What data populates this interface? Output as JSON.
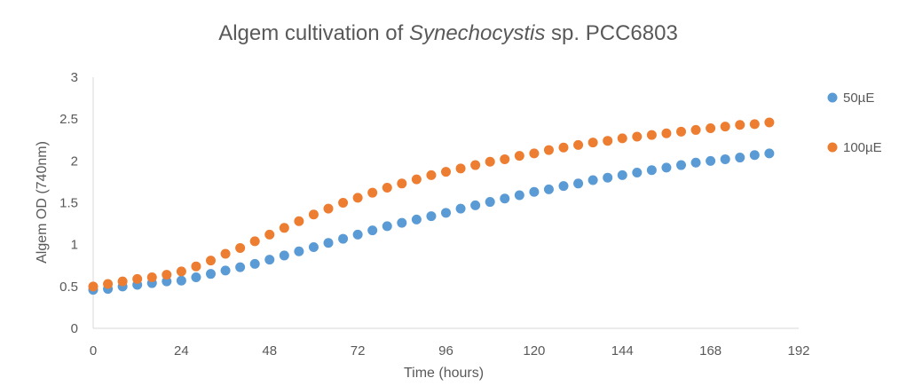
{
  "chart_data": {
    "type": "scatter",
    "title": {
      "prefix": "Algem cultivation of ",
      "italic": "Synechocystis",
      "suffix": " sp. PCC6803"
    },
    "xlabel": "Time (hours)",
    "ylabel": "Algem OD (740nm)",
    "xlim": [
      0,
      192
    ],
    "ylim": [
      0,
      3
    ],
    "xticks": [
      0,
      24,
      48,
      72,
      96,
      120,
      144,
      168,
      192
    ],
    "yticks": [
      0,
      0.5,
      1,
      1.5,
      2,
      2.5,
      3
    ],
    "grid": false,
    "legend_position": "right",
    "series": [
      {
        "name": "50µE",
        "color": "#5B9BD5",
        "x": [
          0,
          4,
          8,
          12,
          16,
          20,
          24,
          28,
          32,
          36,
          40,
          44,
          48,
          52,
          56,
          60,
          64,
          68,
          72,
          76,
          80,
          84,
          88,
          92,
          96,
          100,
          104,
          108,
          112,
          116,
          120,
          124,
          128,
          132,
          136,
          140,
          144,
          148,
          152,
          156,
          160,
          164,
          168,
          172,
          176,
          180,
          184
        ],
        "y": [
          0.46,
          0.47,
          0.5,
          0.52,
          0.54,
          0.56,
          0.57,
          0.61,
          0.65,
          0.69,
          0.73,
          0.77,
          0.82,
          0.87,
          0.92,
          0.97,
          1.02,
          1.07,
          1.12,
          1.17,
          1.22,
          1.26,
          1.3,
          1.34,
          1.38,
          1.43,
          1.47,
          1.51,
          1.55,
          1.59,
          1.63,
          1.66,
          1.7,
          1.73,
          1.77,
          1.8,
          1.83,
          1.86,
          1.89,
          1.92,
          1.95,
          1.98,
          2.0,
          2.02,
          2.04,
          2.07,
          2.09
        ]
      },
      {
        "name": "100µE",
        "color": "#ED7D31",
        "x": [
          0,
          4,
          8,
          12,
          16,
          20,
          24,
          28,
          32,
          36,
          40,
          44,
          48,
          52,
          56,
          60,
          64,
          68,
          72,
          76,
          80,
          84,
          88,
          92,
          96,
          100,
          104,
          108,
          112,
          116,
          120,
          124,
          128,
          132,
          136,
          140,
          144,
          148,
          152,
          156,
          160,
          164,
          168,
          172,
          176,
          180,
          184
        ],
        "y": [
          0.5,
          0.53,
          0.56,
          0.59,
          0.61,
          0.64,
          0.68,
          0.74,
          0.81,
          0.89,
          0.96,
          1.04,
          1.12,
          1.2,
          1.28,
          1.36,
          1.43,
          1.5,
          1.56,
          1.62,
          1.68,
          1.73,
          1.78,
          1.83,
          1.87,
          1.91,
          1.95,
          1.99,
          2.02,
          2.06,
          2.09,
          2.13,
          2.16,
          2.19,
          2.22,
          2.24,
          2.27,
          2.29,
          2.31,
          2.33,
          2.35,
          2.37,
          2.39,
          2.41,
          2.43,
          2.44,
          2.46
        ]
      }
    ]
  }
}
